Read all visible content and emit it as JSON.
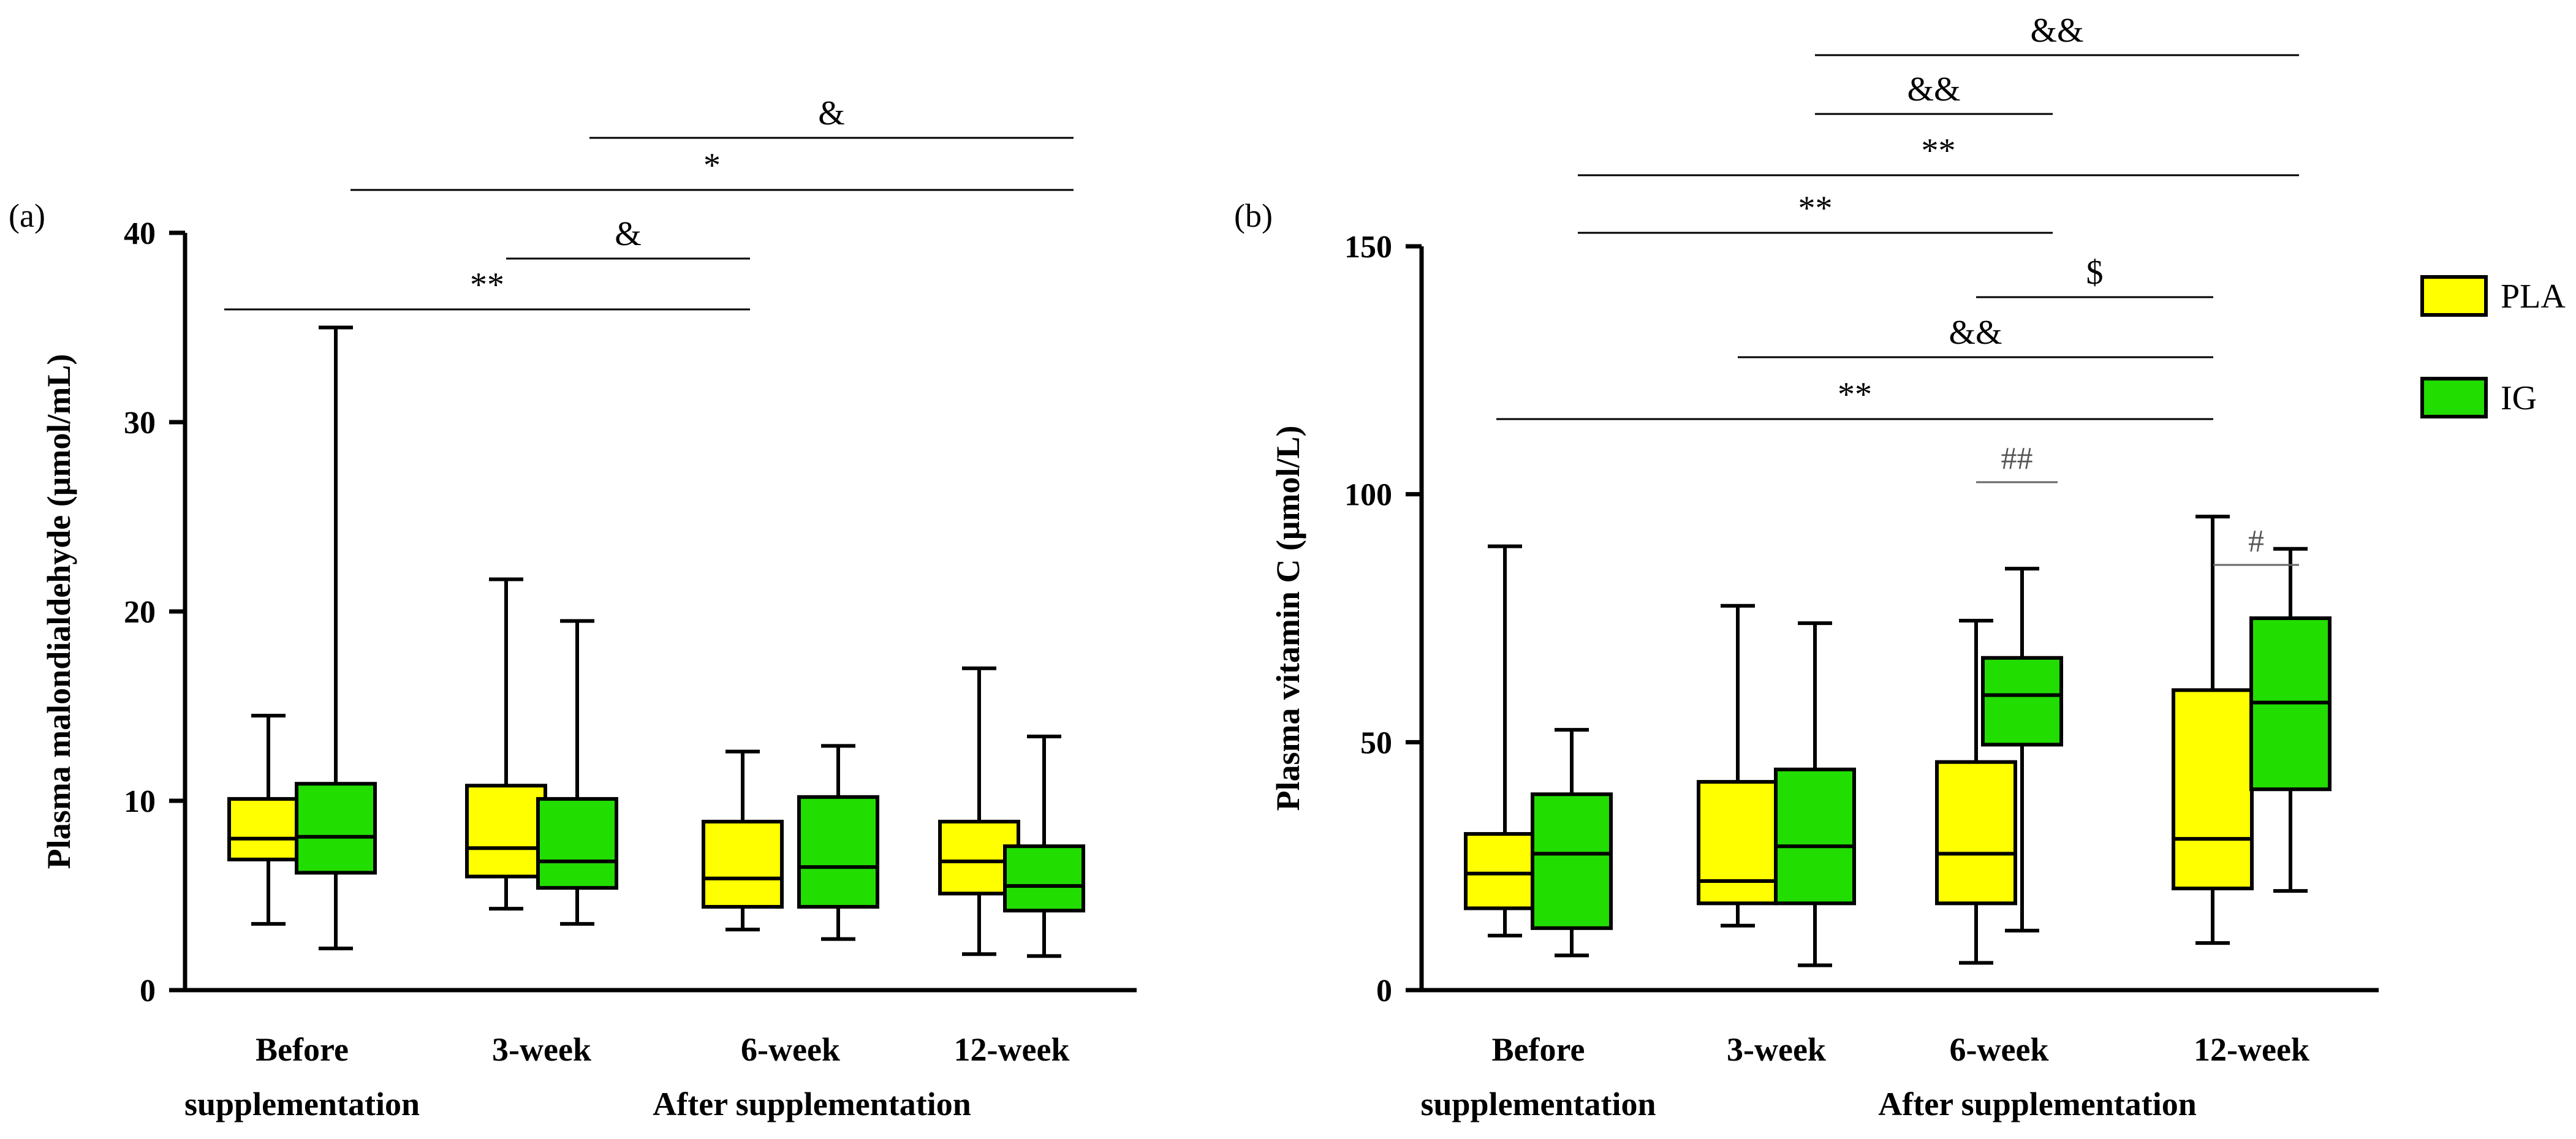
{
  "chart_data": [
    {
      "panel_label": "(a)",
      "type": "boxplot",
      "ylabel": "Plasma malondialdehyde (μmol/mL)",
      "ylim": [
        0,
        40
      ],
      "yticks": [
        "0",
        "10",
        "20",
        "30",
        "40"
      ],
      "ytick_values": [
        0,
        10,
        20,
        30,
        40
      ],
      "categories": [
        "Before supplementation",
        "3-week",
        "6-week",
        "12-week"
      ],
      "category_lines": [
        [
          "Before",
          "supplementation"
        ],
        [
          "3-week"
        ],
        [
          "6-week"
        ],
        [
          "12-week"
        ]
      ],
      "group_label": "After supplementation",
      "series": [
        {
          "name": "PLA",
          "color": "#ffff00",
          "boxes": [
            {
              "min": 3.5,
              "q1": 6.9,
              "median": 8.0,
              "q3": 10.1,
              "max": 14.5
            },
            {
              "min": 4.3,
              "q1": 6.0,
              "median": 7.5,
              "q3": 10.8,
              "max": 21.7
            },
            {
              "min": 3.2,
              "q1": 4.4,
              "median": 5.9,
              "q3": 8.9,
              "max": 12.6
            },
            {
              "min": 1.9,
              "q1": 5.1,
              "median": 6.8,
              "q3": 8.9,
              "max": 17.0
            }
          ]
        },
        {
          "name": "IG",
          "color": "#22dd00",
          "boxes": [
            {
              "min": 2.2,
              "q1": 6.2,
              "median": 8.1,
              "q3": 10.9,
              "max": 35.0
            },
            {
              "min": 3.5,
              "q1": 5.4,
              "median": 6.8,
              "q3": 10.1,
              "max": 19.5
            },
            {
              "min": 2.7,
              "q1": 4.4,
              "median": 6.5,
              "q3": 10.2,
              "max": 12.9
            },
            {
              "min": 1.8,
              "q1": 4.2,
              "median": 5.5,
              "q3": 7.6,
              "max": 13.4
            }
          ]
        }
      ],
      "significance": [
        {
          "label": "&",
          "from": "3-week IG",
          "to": "12-week IG",
          "style": "black"
        },
        {
          "label": "*",
          "from": "Before IG",
          "to": "12-week IG",
          "style": "black"
        },
        {
          "label": "&",
          "from": "3-week IG",
          "to": "6-week PLA",
          "style": "black"
        },
        {
          "label": "**",
          "from": "Before PLA",
          "to": "6-week PLA",
          "style": "black"
        }
      ]
    },
    {
      "panel_label": "(b)",
      "type": "boxplot",
      "ylabel": "Plasma vitamin C (μmol/L)",
      "ylim": [
        0,
        150
      ],
      "yticks": [
        "0",
        "50",
        "100",
        "150"
      ],
      "ytick_values": [
        0,
        50,
        100,
        150
      ],
      "categories": [
        "Before supplementation",
        "3-week",
        "6-week",
        "12-week"
      ],
      "category_lines": [
        [
          "Before",
          "supplementation"
        ],
        [
          "3-week"
        ],
        [
          "6-week"
        ],
        [
          "12-week"
        ]
      ],
      "group_label": "After supplementation",
      "series": [
        {
          "name": "PLA",
          "color": "#ffff00",
          "boxes": [
            {
              "min": 11,
              "q1": 16.5,
              "median": 23.5,
              "q3": 31.5,
              "max": 89.5
            },
            {
              "min": 13,
              "q1": 17.5,
              "median": 22,
              "q3": 42,
              "max": 77.5
            },
            {
              "min": 5.5,
              "q1": 17.5,
              "median": 27.5,
              "q3": 46,
              "max": 74.5
            },
            {
              "min": 9.5,
              "q1": 20.5,
              "median": 30.5,
              "q3": 60.5,
              "max": 95.5
            }
          ]
        },
        {
          "name": "IG",
          "color": "#22dd00",
          "boxes": [
            {
              "min": 7,
              "q1": 12.5,
              "median": 27.5,
              "q3": 39.5,
              "max": 52.5
            },
            {
              "min": 5,
              "q1": 17.5,
              "median": 29,
              "q3": 44.5,
              "max": 74
            },
            {
              "min": 12,
              "q1": 49.5,
              "median": 59.5,
              "q3": 67,
              "max": 85
            },
            {
              "min": 20,
              "q1": 40.5,
              "median": 58,
              "q3": 75,
              "max": 89
            }
          ]
        }
      ],
      "significance": [
        {
          "label": "&&",
          "from": "3-week IG",
          "to": "12-week IG",
          "style": "black"
        },
        {
          "label": "&&",
          "from": "3-week IG",
          "to": "6-week IG",
          "style": "black"
        },
        {
          "label": "**",
          "from": "Before IG",
          "to": "12-week IG",
          "style": "black"
        },
        {
          "label": "**",
          "from": "Before IG",
          "to": "6-week IG",
          "style": "black"
        },
        {
          "label": "$",
          "from": "6-week IG",
          "to": "12-week PLA",
          "style": "black"
        },
        {
          "label": "&&",
          "from": "3-week PLA",
          "to": "12-week PLA",
          "style": "black"
        },
        {
          "label": "**",
          "from": "Before PLA",
          "to": "12-week PLA",
          "style": "black"
        },
        {
          "label": "##",
          "from": "6-week PLA",
          "to": "6-week IG",
          "style": "gray"
        },
        {
          "label": "#",
          "from": "12-week PLA",
          "to": "12-week IG",
          "style": "gray"
        }
      ]
    }
  ],
  "legend": {
    "items": [
      {
        "name": "PLA",
        "color": "#ffff00"
      },
      {
        "name": "IG",
        "color": "#22dd00"
      }
    ]
  }
}
